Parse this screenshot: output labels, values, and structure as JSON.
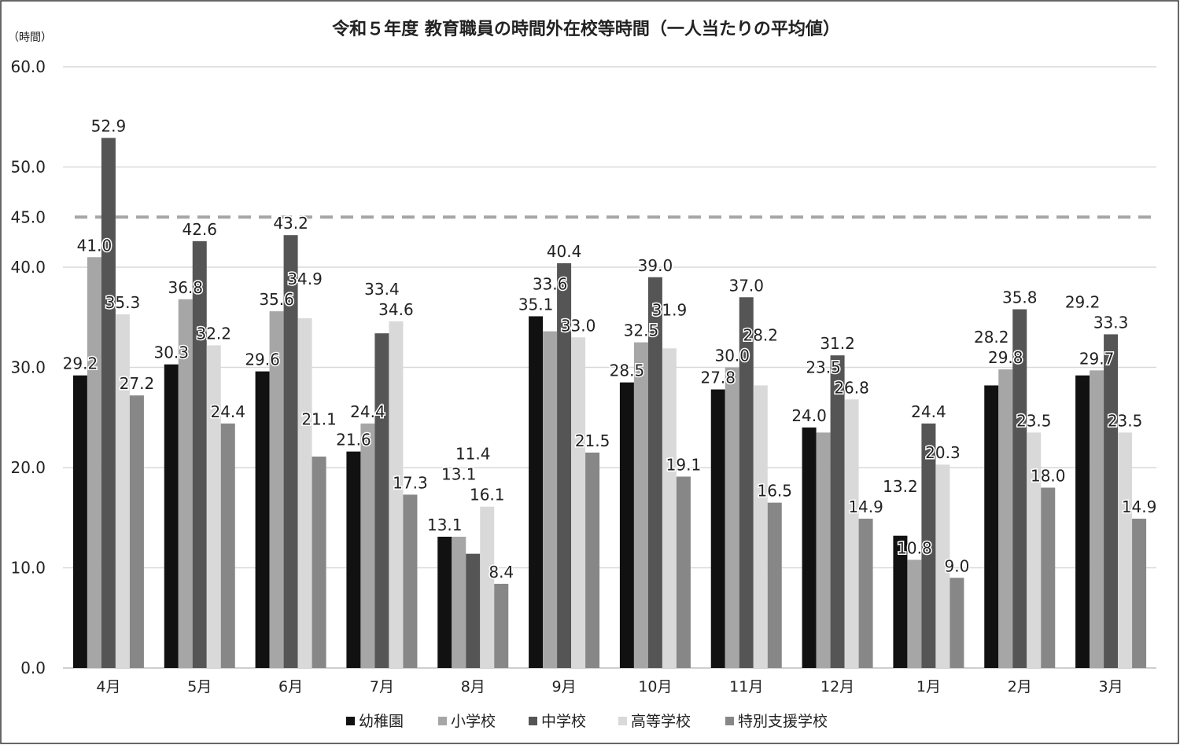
{
  "chart_data": {
    "type": "bar",
    "title": "令和５年度 教育職員の時間外在校等時間（一人当たりの平均値）",
    "ylabel": "（時間）",
    "ylim": [
      0,
      60
    ],
    "yticks": [
      "0.0",
      "10.0",
      "20.0",
      "30.0",
      "40.0",
      "45.0",
      "50.0",
      "60.0"
    ],
    "ytick_values": [
      0,
      10,
      20,
      30,
      40,
      45,
      50,
      60
    ],
    "grid": true,
    "legend_position": "bottom",
    "reference_line": {
      "value": 45,
      "style": "dashed",
      "color": "#a6a6a6"
    },
    "categories": [
      "4月",
      "5月",
      "6月",
      "7月",
      "8月",
      "9月",
      "10月",
      "11月",
      "12月",
      "1月",
      "2月",
      "3月"
    ],
    "series": [
      {
        "name": "幼稚園",
        "color": "#111111",
        "values": [
          29.2,
          30.3,
          29.6,
          21.6,
          13.1,
          35.1,
          28.5,
          27.8,
          24.0,
          13.2,
          28.2,
          29.2
        ]
      },
      {
        "name": "小学校",
        "color": "#a6a6a6",
        "values": [
          41.0,
          36.8,
          35.6,
          24.4,
          13.1,
          33.6,
          32.5,
          30.0,
          23.5,
          10.8,
          29.8,
          29.7
        ]
      },
      {
        "name": "中学校",
        "color": "#555555",
        "values": [
          52.9,
          42.6,
          43.2,
          33.4,
          11.4,
          40.4,
          39.0,
          37.0,
          31.2,
          24.4,
          35.8,
          33.3
        ]
      },
      {
        "name": "高等学校",
        "color": "#d9d9d9",
        "values": [
          35.3,
          32.2,
          34.9,
          34.6,
          16.1,
          33.0,
          31.9,
          28.2,
          26.8,
          20.3,
          23.5,
          23.5
        ]
      },
      {
        "name": "特別支援学校",
        "color": "#878787",
        "values": [
          27.2,
          24.4,
          21.1,
          17.3,
          8.4,
          21.5,
          19.1,
          16.5,
          14.9,
          9.0,
          18.0,
          14.9
        ]
      }
    ]
  }
}
